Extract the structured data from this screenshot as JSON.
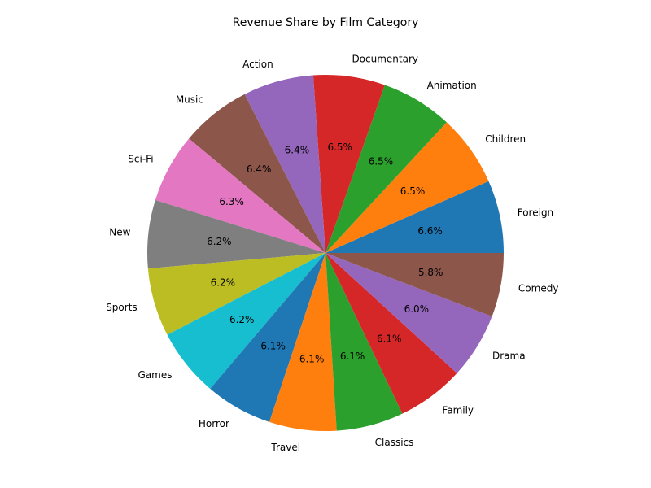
{
  "chart_data": {
    "type": "pie",
    "title": "Revenue Share by Film Category",
    "start_angle_deg": 0,
    "direction": "counterclockwise",
    "slices": [
      {
        "label": "Foreign",
        "percent": 6.6,
        "percent_label": "6.6%",
        "color": "#1f77b4"
      },
      {
        "label": "Children",
        "percent": 6.5,
        "percent_label": "6.5%",
        "color": "#ff7f0e"
      },
      {
        "label": "Animation",
        "percent": 6.5,
        "percent_label": "6.5%",
        "color": "#2ca02c"
      },
      {
        "label": "Documentary",
        "percent": 6.5,
        "percent_label": "6.5%",
        "color": "#d62728"
      },
      {
        "label": "Action",
        "percent": 6.4,
        "percent_label": "6.4%",
        "color": "#9467bd"
      },
      {
        "label": "Music",
        "percent": 6.4,
        "percent_label": "6.4%",
        "color": "#8c564b"
      },
      {
        "label": "Sci-Fi",
        "percent": 6.3,
        "percent_label": "6.3%",
        "color": "#e377c2"
      },
      {
        "label": "New",
        "percent": 6.2,
        "percent_label": "6.2%",
        "color": "#7f7f7f"
      },
      {
        "label": "Sports",
        "percent": 6.2,
        "percent_label": "6.2%",
        "color": "#bcbd22"
      },
      {
        "label": "Games",
        "percent": 6.2,
        "percent_label": "6.2%",
        "color": "#17becf"
      },
      {
        "label": "Horror",
        "percent": 6.1,
        "percent_label": "6.1%",
        "color": "#1f77b4"
      },
      {
        "label": "Travel",
        "percent": 6.1,
        "percent_label": "6.1%",
        "color": "#ff7f0e"
      },
      {
        "label": "Classics",
        "percent": 6.1,
        "percent_label": "6.1%",
        "color": "#2ca02c"
      },
      {
        "label": "Family",
        "percent": 6.1,
        "percent_label": "6.1%",
        "color": "#d62728"
      },
      {
        "label": "Drama",
        "percent": 6.0,
        "percent_label": "6.0%",
        "color": "#9467bd"
      },
      {
        "label": "Comedy",
        "percent": 5.8,
        "percent_label": "5.8%",
        "color": "#8c564b"
      }
    ]
  }
}
